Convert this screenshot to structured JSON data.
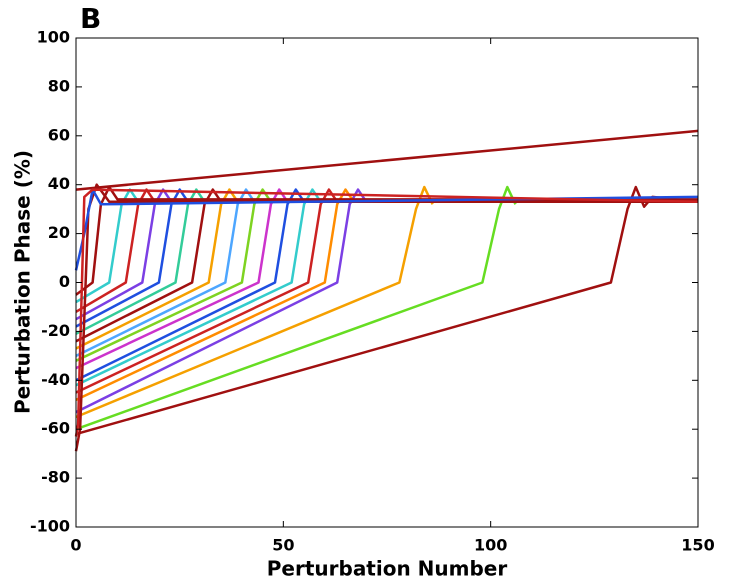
{
  "chart_data": {
    "type": "line",
    "panel_label": "B",
    "xlabel": "Perturbation Number",
    "ylabel": "Perturbation Phase (%)",
    "xlim": [
      0,
      150
    ],
    "ylim": [
      -100,
      100
    ],
    "xticks": [
      0,
      50,
      100,
      150
    ],
    "yticks": [
      -100,
      -80,
      -60,
      -40,
      -20,
      0,
      20,
      40,
      60,
      80,
      100
    ],
    "series": [
      {
        "color": "#a01010",
        "x": [
          0,
          150
        ],
        "values": [
          38,
          62
        ]
      },
      {
        "color": "#a01010",
        "x": [
          0,
          129,
          133,
          135,
          137,
          139,
          150
        ],
        "values": [
          -62,
          0,
          30,
          39,
          31,
          35,
          33
        ]
      },
      {
        "color": "#66dd22",
        "x": [
          0,
          98,
          102,
          104,
          106
        ],
        "values": [
          -60,
          0,
          30,
          39,
          32
        ]
      },
      {
        "color": "#f5a000",
        "x": [
          0,
          78,
          82,
          84,
          86
        ],
        "values": [
          -55,
          0,
          30,
          39,
          32
        ]
      },
      {
        "color": "#7b3fe4",
        "x": [
          0,
          63,
          66,
          68,
          70,
          150
        ],
        "values": [
          -53,
          0,
          32,
          38,
          33,
          33
        ]
      },
      {
        "color": "#ff8c00",
        "x": [
          0,
          60,
          63,
          65,
          67
        ],
        "values": [
          -48,
          0,
          32,
          38,
          33
        ]
      },
      {
        "color": "#cc2222",
        "x": [
          0,
          56,
          59,
          61,
          63
        ],
        "values": [
          -45,
          0,
          32,
          38,
          33
        ]
      },
      {
        "color": "#33cccc",
        "x": [
          0,
          52,
          55,
          57,
          59
        ],
        "values": [
          -42,
          0,
          32,
          38,
          33
        ]
      },
      {
        "color": "#1f4fe0",
        "x": [
          0,
          48,
          51,
          53,
          55
        ],
        "values": [
          -40,
          0,
          32,
          38,
          33
        ]
      },
      {
        "color": "#cc33cc",
        "x": [
          0,
          44,
          47,
          49,
          51
        ],
        "values": [
          -35,
          0,
          32,
          38,
          33
        ]
      },
      {
        "color": "#7ed321",
        "x": [
          0,
          40,
          43,
          45,
          47
        ],
        "values": [
          -32,
          0,
          32,
          38,
          33
        ]
      },
      {
        "color": "#4da6ff",
        "x": [
          0,
          36,
          39,
          41,
          43
        ],
        "values": [
          -30,
          0,
          32,
          38,
          33
        ]
      },
      {
        "color": "#f5a000",
        "x": [
          0,
          32,
          35,
          37,
          39
        ],
        "values": [
          -27,
          0,
          32,
          38,
          33
        ]
      },
      {
        "color": "#a01010",
        "x": [
          0,
          28,
          31,
          33,
          35
        ],
        "values": [
          -24,
          0,
          32,
          38,
          33
        ]
      },
      {
        "color": "#33cc99",
        "x": [
          0,
          24,
          27,
          29,
          31
        ],
        "values": [
          -21,
          0,
          32,
          38,
          33
        ]
      },
      {
        "color": "#1f4fe0",
        "x": [
          0,
          20,
          23,
          25,
          27
        ],
        "values": [
          -18,
          0,
          32,
          38,
          33
        ]
      },
      {
        "color": "#7b3fe4",
        "x": [
          0,
          16,
          19,
          21,
          23
        ],
        "values": [
          -15,
          0,
          32,
          38,
          33
        ]
      },
      {
        "color": "#cc2222",
        "x": [
          0,
          12,
          15,
          17,
          19
        ],
        "values": [
          -12,
          0,
          32,
          38,
          33
        ]
      },
      {
        "color": "#33cccc",
        "x": [
          0,
          8,
          11,
          13,
          15
        ],
        "values": [
          -8,
          0,
          32,
          38,
          33
        ]
      },
      {
        "color": "#a01010",
        "x": [
          0,
          4,
          6,
          8,
          10,
          150
        ],
        "values": [
          -5,
          0,
          32,
          39,
          34,
          34
        ]
      },
      {
        "color": "#a01010",
        "x": [
          0,
          1,
          3,
          5,
          8,
          150
        ],
        "values": [
          -69,
          -60,
          30,
          40,
          33,
          33
        ]
      },
      {
        "color": "#1f4fe0",
        "x": [
          0,
          2,
          4,
          6,
          150
        ],
        "values": [
          5,
          20,
          38,
          32,
          35
        ]
      },
      {
        "color": "#cc2222",
        "x": [
          0,
          0.5,
          2,
          4,
          150
        ],
        "values": [
          -63,
          -58,
          35,
          38,
          33
        ]
      }
    ]
  }
}
